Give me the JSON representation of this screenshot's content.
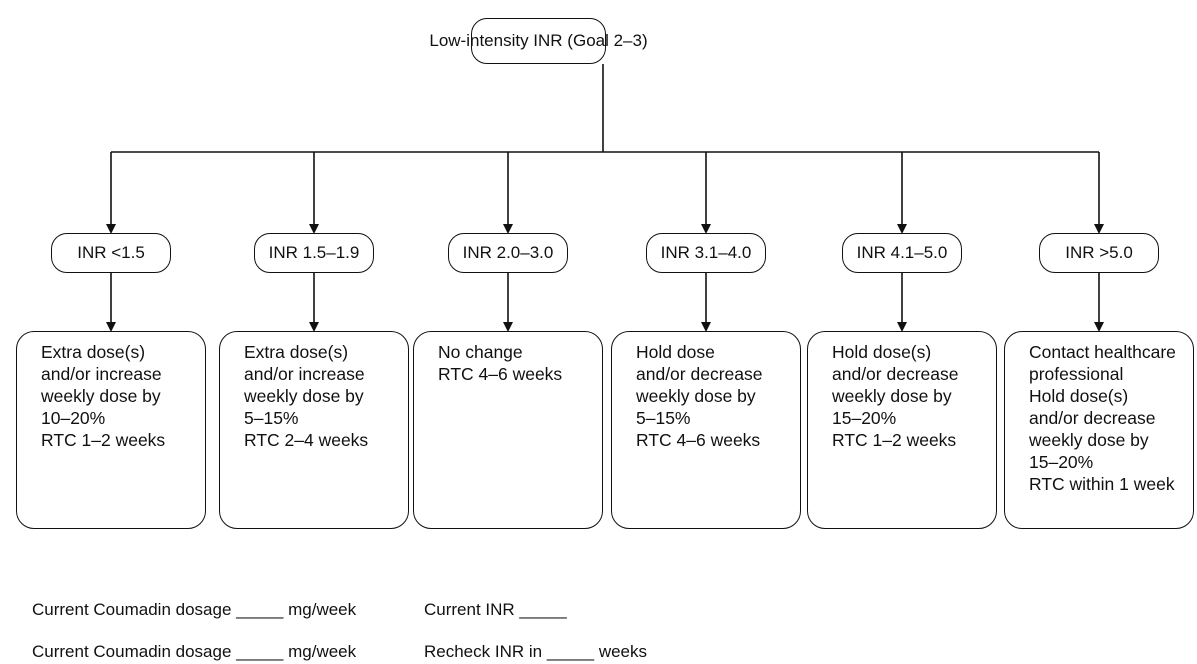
{
  "root": {
    "label": "Low-intensity INR (Goal 2–3)"
  },
  "branches": [
    {
      "range": "INR <1.5",
      "action": [
        "Extra dose(s)",
        "and/or increase",
        "weekly dose by",
        "10–20%",
        "RTC 1–2 weeks"
      ]
    },
    {
      "range": "INR 1.5–1.9",
      "action": [
        "Extra dose(s)",
        "and/or increase",
        "weekly dose by",
        "5–15%",
        "RTC 2–4 weeks"
      ]
    },
    {
      "range": "INR 2.0–3.0",
      "action": [
        "No change",
        "RTC 4–6 weeks"
      ]
    },
    {
      "range": "INR 3.1–4.0",
      "action": [
        "Hold dose",
        "and/or decrease",
        "weekly dose by",
        "5–15%",
        "RTC 4–6 weeks"
      ]
    },
    {
      "range": "INR 4.1–5.0",
      "action": [
        "Hold dose(s)",
        "and/or decrease",
        "weekly dose by",
        "15–20%",
        "RTC 1–2 weeks"
      ]
    },
    {
      "range": "INR >5.0",
      "action": [
        "Contact healthcare",
        "professional",
        "Hold dose(s)",
        "and/or decrease",
        "weekly dose by",
        "15–20%",
        "RTC within 1 week"
      ]
    }
  ],
  "form": {
    "row1": {
      "left": "Current Coumadin dosage _____ mg/week",
      "right": "Current INR _____"
    },
    "row2": {
      "left": "Current Coumadin dosage _____ mg/week",
      "right": "Recheck INR in _____ weeks"
    }
  }
}
